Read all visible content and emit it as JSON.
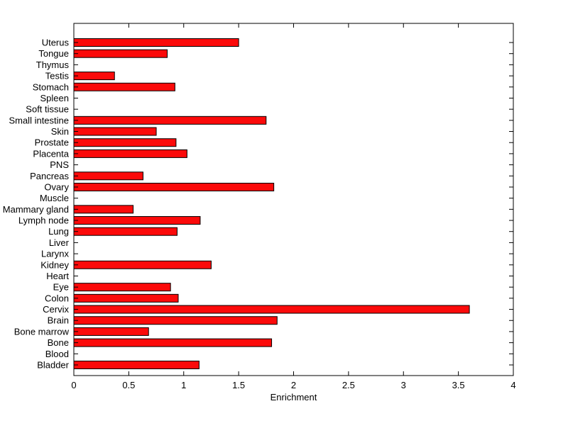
{
  "chart_data": {
    "type": "bar",
    "orientation": "horizontal",
    "title": "",
    "xlabel": "Enrichment",
    "ylabel": "",
    "xlim": [
      0,
      4
    ],
    "grid": false,
    "legend": "none",
    "bar_color": "#fb0a0a",
    "bar_edge_color": "#000000",
    "background_color": "#ffffff",
    "xticks": [
      0,
      0.5,
      1,
      1.5,
      2,
      2.5,
      3,
      3.5,
      4
    ],
    "xtick_labels": [
      "0",
      "0.5",
      "1",
      "1.5",
      "2",
      "2.5",
      "3",
      "3.5",
      "4"
    ],
    "categories_top_to_bottom": [
      "Uterus",
      "Tongue",
      "Thymus",
      "Testis",
      "Stomach",
      "Spleen",
      "Soft tissue",
      "Small intestine",
      "Skin",
      "Prostate",
      "Placenta",
      "PNS",
      "Pancreas",
      "Ovary",
      "Muscle",
      "Mammary gland",
      "Lymph node",
      "Lung",
      "Liver",
      "Larynx",
      "Kidney",
      "Heart",
      "Eye",
      "Colon",
      "Cervix",
      "Brain",
      "Bone marrow",
      "Bone",
      "Blood",
      "Bladder"
    ],
    "values": [
      1.5,
      0.85,
      0,
      0.37,
      0.92,
      0,
      0,
      1.75,
      0.75,
      0.93,
      1.03,
      0,
      0.63,
      1.82,
      0,
      0.54,
      1.15,
      0.94,
      0,
      0,
      1.25,
      0,
      0.88,
      0.95,
      3.6,
      1.85,
      0.68,
      1.8,
      0,
      1.14
    ]
  }
}
